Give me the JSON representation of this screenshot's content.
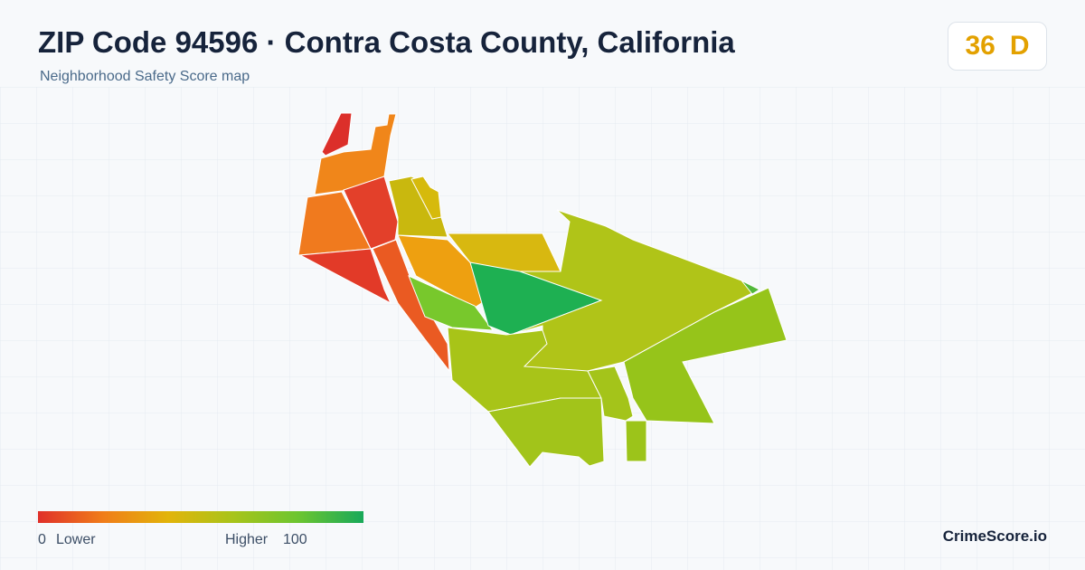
{
  "header": {
    "title": "ZIP Code 94596 · Contra Costa County, California",
    "subtitle": "Neighborhood Safety Score map"
  },
  "score": {
    "value": "36",
    "grade": "D"
  },
  "legend": {
    "min": "0",
    "min_label": "Lower",
    "max_label": "Higher",
    "max": "100"
  },
  "brand": "CrimeScore.io"
}
